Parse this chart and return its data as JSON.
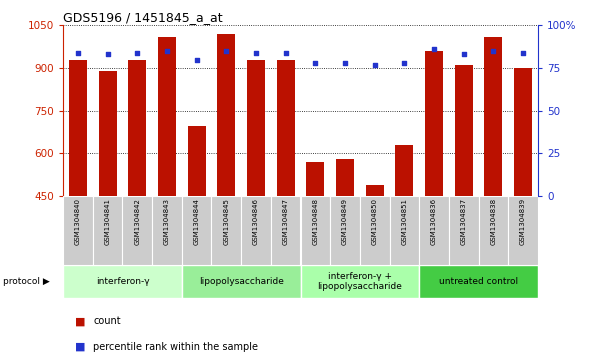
{
  "title": "GDS5196 / 1451845_a_at",
  "samples": [
    "GSM1304840",
    "GSM1304841",
    "GSM1304842",
    "GSM1304843",
    "GSM1304844",
    "GSM1304845",
    "GSM1304846",
    "GSM1304847",
    "GSM1304848",
    "GSM1304849",
    "GSM1304850",
    "GSM1304851",
    "GSM1304836",
    "GSM1304837",
    "GSM1304838",
    "GSM1304839"
  ],
  "counts": [
    930,
    890,
    930,
    1010,
    695,
    1020,
    930,
    930,
    570,
    580,
    490,
    630,
    960,
    910,
    1010,
    900
  ],
  "percentiles": [
    84,
    83,
    84,
    85,
    80,
    85,
    84,
    84,
    78,
    78,
    77,
    78,
    86,
    83,
    85,
    84
  ],
  "ylim_left": [
    450,
    1050
  ],
  "ylim_right": [
    0,
    100
  ],
  "yticks_left": [
    450,
    600,
    750,
    900,
    1050
  ],
  "yticks_right": [
    0,
    25,
    50,
    75,
    100
  ],
  "ytick_labels_left": [
    "450",
    "600",
    "750",
    "900",
    "1050"
  ],
  "ytick_labels_right": [
    "0",
    "25",
    "50",
    "75",
    "100%"
  ],
  "bar_color": "#bb1100",
  "dot_color": "#2233cc",
  "bg_color": "#ffffff",
  "protocols": [
    {
      "label": "interferon-γ",
      "start": 0,
      "end": 4,
      "color": "#ccffcc"
    },
    {
      "label": "lipopolysaccharide",
      "start": 4,
      "end": 8,
      "color": "#99ee99"
    },
    {
      "label": "interferon-γ +\nlipopolysaccharide",
      "start": 8,
      "end": 12,
      "color": "#aaffaa"
    },
    {
      "label": "untreated control",
      "start": 12,
      "end": 16,
      "color": "#44cc44"
    }
  ],
  "left_axis_color": "#cc2200",
  "right_axis_color": "#2233cc"
}
